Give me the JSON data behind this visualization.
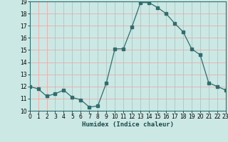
{
  "x": [
    0,
    1,
    2,
    3,
    4,
    5,
    6,
    7,
    8,
    9,
    10,
    11,
    12,
    13,
    14,
    15,
    16,
    17,
    18,
    19,
    20,
    21,
    22,
    23
  ],
  "y": [
    12.0,
    11.8,
    11.2,
    11.4,
    11.7,
    11.1,
    10.9,
    10.3,
    10.4,
    12.3,
    15.1,
    15.1,
    16.9,
    18.9,
    18.9,
    18.5,
    18.0,
    17.2,
    16.5,
    15.1,
    14.6,
    12.3,
    12.0,
    11.7
  ],
  "xlabel": "Humidex (Indice chaleur)",
  "bg_color": "#cce8e4",
  "line_color": "#2e6e6e",
  "grid_color": "#f0a0a0",
  "ylim": [
    10,
    19
  ],
  "xlim": [
    0,
    23
  ],
  "yticks": [
    10,
    11,
    12,
    13,
    14,
    15,
    16,
    17,
    18,
    19
  ],
  "xticks": [
    0,
    1,
    2,
    3,
    4,
    5,
    6,
    7,
    8,
    9,
    10,
    11,
    12,
    13,
    14,
    15,
    16,
    17,
    18,
    19,
    20,
    21,
    22,
    23
  ]
}
